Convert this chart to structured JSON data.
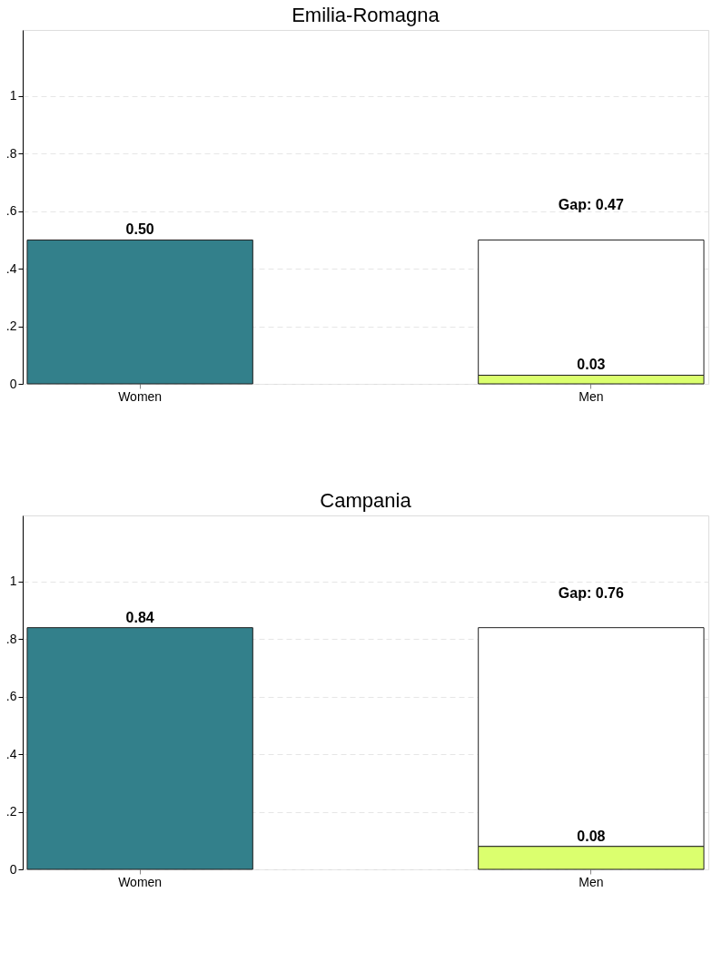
{
  "chart_data": [
    {
      "type": "bar",
      "title": "Emilia-Romagna",
      "categories": [
        "Women",
        "Men"
      ],
      "stacked": true,
      "ylim": [
        0,
        1.23
      ],
      "yticks": [
        0,
        {
          "value": 0.2,
          "label": ".2"
        },
        {
          "value": 0.4,
          "label": ".4"
        },
        {
          "value": 0.6,
          "label": ".6"
        },
        {
          "value": 0.8,
          "label": ".8"
        },
        1
      ],
      "grid": "y",
      "series": [
        {
          "colors": [
            "#33808b",
            "#dbff6e"
          ],
          "values": [
            0.5,
            0.03
          ],
          "value_labels": [
            "0.50",
            "0.03"
          ]
        },
        {
          "color": "#ffffff",
          "values": [
            null,
            0.47
          ],
          "value_labels": [
            null,
            "Gap: 0.47"
          ]
        }
      ]
    },
    {
      "type": "bar",
      "title": "Campania",
      "categories": [
        "Women",
        "Men"
      ],
      "stacked": true,
      "ylim": [
        0,
        1.23
      ],
      "yticks": [
        0,
        {
          "value": 0.2,
          "label": ".2"
        },
        {
          "value": 0.4,
          "label": ".4"
        },
        {
          "value": 0.6,
          "label": ".6"
        },
        {
          "value": 0.8,
          "label": ".8"
        },
        1
      ],
      "grid": "y",
      "series": [
        {
          "colors": [
            "#33808b",
            "#dbff6e"
          ],
          "values": [
            0.84,
            0.08
          ],
          "value_labels": [
            "0.84",
            "0.08"
          ]
        },
        {
          "color": "#ffffff",
          "values": [
            null,
            0.76
          ],
          "value_labels": [
            null,
            "Gap: 0.76"
          ]
        }
      ]
    }
  ]
}
